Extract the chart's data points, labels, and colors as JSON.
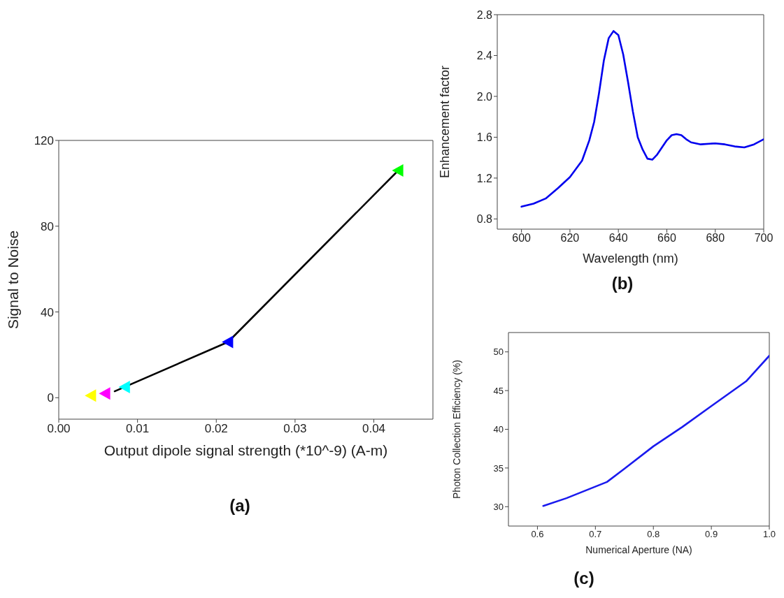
{
  "chart_data": [
    {
      "type": "scatter",
      "xlabel": "Output dipole signal strength (*10^-9) (A-m)",
      "ylabel": "Signal to Noise",
      "annotations": [
        "(a)"
      ],
      "xlim": [
        0,
        0.0475
      ],
      "xticks": [
        {
          "value": 0,
          "label": "0.00"
        },
        {
          "value": 0.01,
          "label": "0.01"
        },
        {
          "value": 0.02,
          "label": "0.02"
        },
        {
          "value": 0.03,
          "label": "0.03"
        },
        {
          "value": 0.04,
          "label": "0.04"
        }
      ],
      "ylim": [
        -10,
        120
      ],
      "yticks": [
        0,
        40,
        80,
        120
      ],
      "grid": false,
      "legend": false,
      "series": [
        {
          "type": "line",
          "color": "#000000",
          "x": [
            0.0071,
            0.0215,
            0.0431
          ],
          "values": [
            3,
            26,
            106
          ],
          "marker": "none",
          "line_style": "solid"
        },
        {
          "type": "scatter",
          "x": [
            0.0041,
            0.0059,
            0.0084,
            0.0215,
            0.0431
          ],
          "values": [
            1,
            2,
            5,
            26,
            106
          ],
          "colors": [
            "#ffff00",
            "#ff00ff",
            "#00ffff",
            "#0000ff",
            "#00ff00"
          ],
          "marker": "triangle"
        }
      ]
    },
    {
      "type": "line",
      "xlabel": "Wavelength (nm)",
      "ylabel": "Enhancement factor",
      "annotations": [
        "(b)"
      ],
      "xlim": [
        590,
        700
      ],
      "xticks": [
        600,
        620,
        640,
        660,
        680,
        700
      ],
      "ylim": [
        0.7,
        2.8
      ],
      "yticks": [
        {
          "value": 0.8,
          "label": "0.8"
        },
        {
          "value": 1.2,
          "label": "1.2"
        },
        {
          "value": 1.6,
          "label": "1.6"
        },
        {
          "value": 2,
          "label": "2.0"
        },
        {
          "value": 2.4,
          "label": "2.4"
        },
        {
          "value": 2.8,
          "label": "2.8"
        }
      ],
      "grid": false,
      "legend": false,
      "marker": "none",
      "line_style": "solid",
      "series": [
        {
          "color": "#0000ee",
          "x": [
            600,
            605,
            610,
            615,
            620,
            625,
            628,
            630,
            632,
            634,
            636,
            638,
            640,
            642,
            644,
            646,
            648,
            650,
            652,
            654,
            656,
            658,
            660,
            662,
            664,
            666,
            668,
            670,
            674,
            680,
            684,
            688,
            692,
            696,
            700
          ],
          "values": [
            0.92,
            0.95,
            1.0,
            1.1,
            1.21,
            1.37,
            1.57,
            1.75,
            2.03,
            2.35,
            2.57,
            2.64,
            2.6,
            2.41,
            2.14,
            1.85,
            1.6,
            1.48,
            1.39,
            1.38,
            1.43,
            1.5,
            1.57,
            1.62,
            1.63,
            1.62,
            1.58,
            1.55,
            1.53,
            1.54,
            1.53,
            1.51,
            1.5,
            1.53,
            1.58
          ]
        }
      ]
    },
    {
      "type": "line",
      "xlabel": "Numerical Aperture (NA)",
      "ylabel": "Photon Collection Efficiency (%)",
      "annotations": [
        "(c)"
      ],
      "xlim": [
        0.55,
        1.0
      ],
      "xticks": [
        0.6,
        0.7,
        0.8,
        0.9,
        {
          "value": 1,
          "label": "1.0"
        }
      ],
      "ylim": [
        27.5,
        52.5
      ],
      "yticks": [
        30,
        35,
        40,
        45,
        50
      ],
      "grid": false,
      "legend": false,
      "marker": "none",
      "line_style": "solid",
      "series": [
        {
          "color": "#1a1aee",
          "x": [
            0.61,
            0.65,
            0.72,
            0.75,
            0.8,
            0.85,
            0.9,
            0.96,
            1.0
          ],
          "values": [
            30.1,
            31.1,
            33.2,
            34.9,
            37.8,
            40.3,
            43,
            46.2,
            49.5
          ]
        }
      ]
    }
  ]
}
